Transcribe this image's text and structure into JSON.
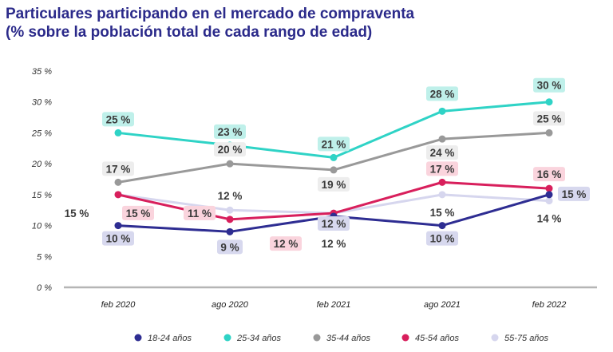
{
  "chart_data": {
    "type": "line",
    "title": "Particulares participando en el mercado de compraventa",
    "subtitle": "(% sobre la población total de cada rango de edad)",
    "categories": [
      "feb 2020",
      "ago 2020",
      "feb 2021",
      "ago 2021",
      "feb 2022"
    ],
    "ylim": [
      0,
      35
    ],
    "yticks": [
      0,
      5,
      10,
      15,
      20,
      25,
      30,
      35
    ],
    "ytick_labels": [
      "0 %",
      "5 %",
      "10 %",
      "15 %",
      "20 %",
      "25 %",
      "30 %",
      "35 %"
    ],
    "grid": false,
    "legend_position": "bottom",
    "series": [
      {
        "name": "18-24 años",
        "color": "#2e2d92",
        "values": [
          10,
          9,
          11.5,
          10,
          15
        ],
        "labels": [
          "10 %",
          "9 %",
          "12 %",
          "10 %",
          "15 %"
        ],
        "label_bg": "#d7d8ee"
      },
      {
        "name": "25-34 años",
        "color": "#2fd3c6",
        "values": [
          25,
          23,
          21,
          28.5,
          30
        ],
        "labels": [
          "25 %",
          "23 %",
          "21 %",
          "28 %",
          "30 %"
        ],
        "label_bg": "#bff0ea"
      },
      {
        "name": "35-44 años",
        "color": "#999999",
        "values": [
          17,
          20,
          19,
          24,
          25
        ],
        "labels": [
          "17 %",
          "20 %",
          "19 %",
          "24 %",
          "25 %"
        ],
        "label_bg": "#ededed"
      },
      {
        "name": "45-54 años",
        "color": "#d81f5c",
        "values": [
          15,
          11,
          12,
          17,
          16
        ],
        "labels": [
          "15 %",
          "11 %",
          "12 %",
          "17 %",
          "16 %"
        ],
        "label_bg": "#fad4dd"
      },
      {
        "name": "55-75 años",
        "color": "#d6d6ee",
        "values": [
          15,
          12.5,
          12,
          15,
          14
        ],
        "labels": [
          "15 %",
          "12 %",
          "12 %",
          "15 %",
          "14 %"
        ],
        "label_bg": "#ffffff"
      }
    ]
  }
}
